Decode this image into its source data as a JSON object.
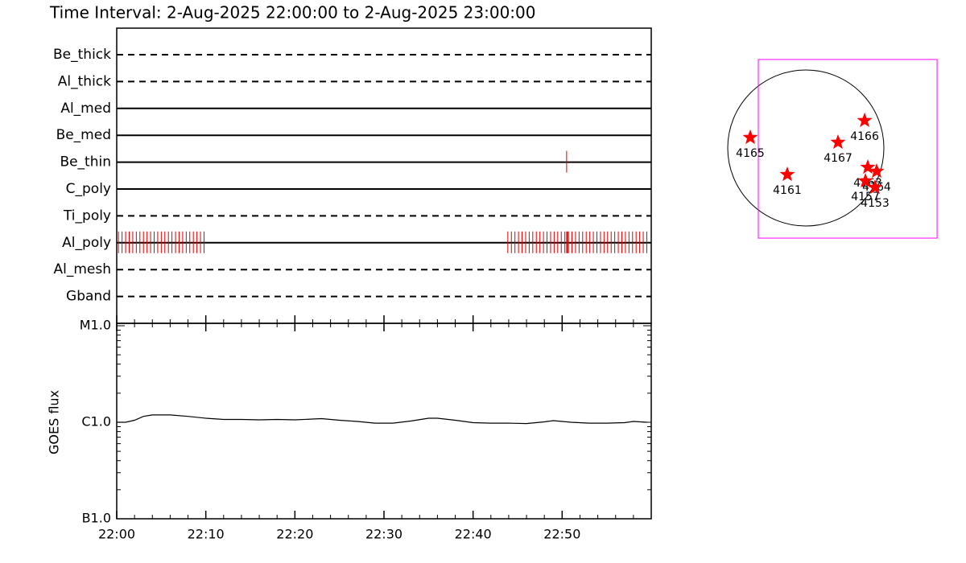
{
  "title": "Time Interval:  2-Aug-2025 22:00:00 to  2-Aug-2025 23:00:00",
  "chart_data": [
    {
      "type": "timeline",
      "event_color": "#e00000",
      "rows": [
        {
          "name": "Be_thick",
          "style": "dashed",
          "times": []
        },
        {
          "name": "Al_thick",
          "style": "dashed",
          "times": []
        },
        {
          "name": "Al_med",
          "style": "solid",
          "times": []
        },
        {
          "name": "Be_med",
          "style": "solid",
          "times": []
        },
        {
          "name": "Be_thin",
          "style": "solid",
          "times": [
            50.5
          ]
        },
        {
          "name": "C_poly",
          "style": "solid",
          "times": []
        },
        {
          "name": "Ti_poly",
          "style": "dashed",
          "times": []
        },
        {
          "name": "Al_poly",
          "style": "solid",
          "times": [
            0.2,
            0.6,
            1.0,
            1.4,
            1.8,
            2.2,
            2.6,
            3.0,
            3.4,
            3.8,
            4.2,
            4.6,
            5.0,
            5.4,
            5.8,
            6.2,
            6.6,
            7.0,
            7.4,
            7.8,
            8.2,
            8.6,
            9.0,
            9.4,
            9.8,
            43.9,
            44.3,
            44.7,
            45.1,
            45.5,
            45.9,
            46.3,
            46.7,
            47.1,
            47.5,
            47.9,
            48.3,
            48.7,
            49.1,
            49.5,
            49.9,
            50.3,
            50.5,
            50.6,
            50.7,
            51.1,
            51.5,
            51.9,
            52.3,
            52.7,
            53.1,
            53.5,
            53.9,
            54.3,
            54.7,
            55.1,
            55.5,
            55.9,
            56.3,
            56.7,
            57.1,
            57.5,
            57.9,
            58.3,
            58.7,
            59.1,
            59.5
          ]
        },
        {
          "name": "Al_mesh",
          "style": "dashed",
          "times": []
        },
        {
          "name": "Gband",
          "style": "dashed",
          "times": []
        }
      ]
    },
    {
      "type": "line",
      "ylabel": "GOES flux",
      "log_scale": true,
      "color": "#000000",
      "x": [
        0,
        1,
        2,
        3,
        4,
        5,
        6,
        8,
        10,
        12,
        14,
        16,
        18,
        20,
        22,
        23,
        25,
        27,
        29,
        31,
        33,
        35,
        36,
        38,
        40,
        42,
        44,
        46,
        48,
        49,
        51,
        53,
        55,
        57,
        58,
        59.5
      ],
      "values": [
        1e-06,
        1e-06,
        1.05e-06,
        1.15e-06,
        1.19e-06,
        1.19e-06,
        1.19e-06,
        1.15e-06,
        1.1e-06,
        1.07e-06,
        1.07e-06,
        1.06e-06,
        1.07e-06,
        1.06e-06,
        1.08e-06,
        1.09e-06,
        1.05e-06,
        1.02e-06,
        9.8e-07,
        9.8e-07,
        1.03e-06,
        1.1e-06,
        1.1e-06,
        1.05e-06,
        9.9e-07,
        9.8e-07,
        9.8e-07,
        9.7e-07,
        1.01e-06,
        1.04e-06,
        1e-06,
        9.8e-07,
        9.8e-07,
        9.9e-07,
        1.02e-06,
        1e-06
      ],
      "xlim": [
        0,
        60
      ],
      "xticks": [
        {
          "value": 0,
          "label": "22:00"
        },
        {
          "value": 10,
          "label": "22:10"
        },
        {
          "value": 20,
          "label": "22:20"
        },
        {
          "value": 30,
          "label": "22:30"
        },
        {
          "value": 40,
          "label": "22:40"
        },
        {
          "value": 50,
          "label": "22:50"
        }
      ],
      "ylim": [
        1e-07,
        1e-05
      ],
      "yticks": [
        {
          "value": 1e-05,
          "label": "M1.0"
        },
        {
          "value": 1e-06,
          "label": "C1.0"
        },
        {
          "value": 1e-07,
          "label": "B1.0"
        }
      ]
    },
    {
      "type": "map",
      "disk_radius": 960,
      "fov_color": "#ff00ff",
      "fov": {
        "x": [
          -584,
          1614
        ],
        "y": [
          -1109,
          1089
        ]
      },
      "point_color": "#ff0000",
      "points": [
        {
          "label": "4165",
          "x": -683,
          "y": 129
        },
        {
          "label": "4161",
          "x": -228,
          "y": -327
        },
        {
          "label": "4167",
          "x": 396,
          "y": 69
        },
        {
          "label": "4166",
          "x": 723,
          "y": 337
        },
        {
          "label": "4163",
          "x": 762,
          "y": -238
        },
        {
          "label": "4164",
          "x": 871,
          "y": -287
        },
        {
          "label": "4157",
          "x": 733,
          "y": -406
        },
        {
          "label": "4153",
          "x": 851,
          "y": -485
        }
      ]
    }
  ]
}
